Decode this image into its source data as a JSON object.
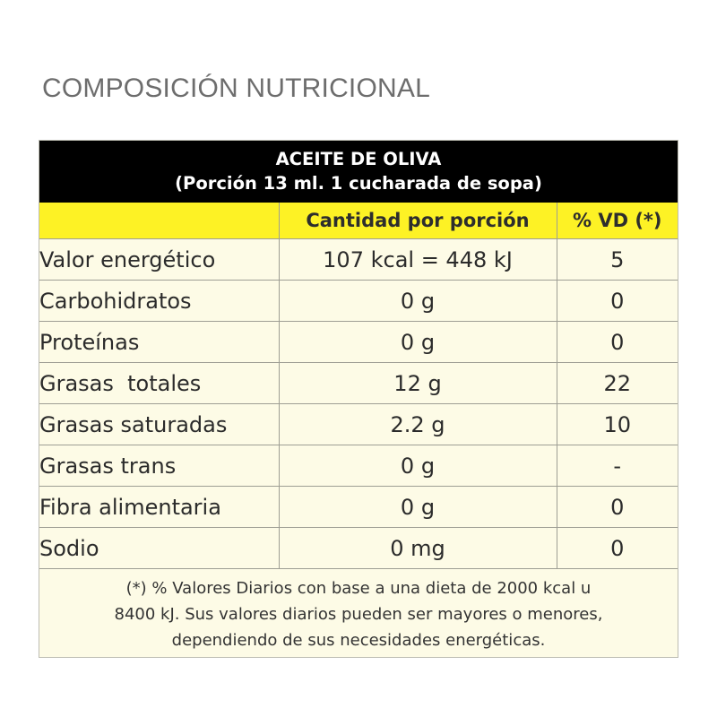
{
  "page_title": "COMPOSICIÓN NUTRICIONAL",
  "table": {
    "product": "ACEITE DE OLIVA",
    "serving": "(Porción 13 ml. 1 cucharada de sopa)",
    "columns": [
      "",
      "Cantidad por porción",
      "% VD (*)"
    ],
    "rows": [
      {
        "name": "Valor energético",
        "amount": "107 kcal = 448 kJ",
        "vd": "5"
      },
      {
        "name": "Carbohidratos",
        "amount": "0 g",
        "vd": "0"
      },
      {
        "name": "Proteínas",
        "amount": "0 g",
        "vd": "0"
      },
      {
        "name": "Grasas  totales",
        "amount": "12 g",
        "vd": "22"
      },
      {
        "name": "Grasas saturadas",
        "amount": "2.2 g",
        "vd": "10"
      },
      {
        "name": "Grasas trans",
        "amount": "0 g",
        "vd": "-"
      },
      {
        "name": "Fibra alimentaria",
        "amount": "0 g",
        "vd": "0"
      },
      {
        "name": "Sodio",
        "amount": "0 mg",
        "vd": "0"
      }
    ],
    "footnote_lines": [
      "(*) % Valores Diarios con base a una dieta de 2000 kcal u",
      "8400 kJ. Sus valores diarios pueden ser mayores o menores,",
      "dependiendo de sus necesidades energéticas."
    ]
  },
  "colors": {
    "header_bg": "#000000",
    "column_header_bg": "#fdf225",
    "panel_bg": "#fdfbe6",
    "title_color": "#6d6d6d"
  }
}
